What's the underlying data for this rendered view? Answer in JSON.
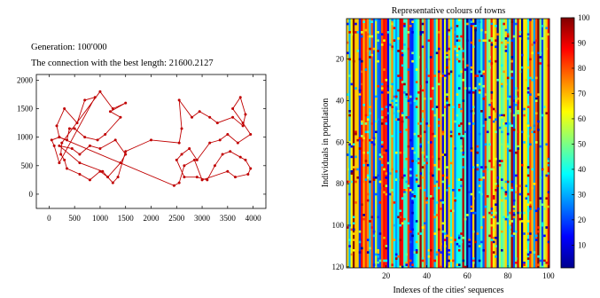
{
  "chart_data": [
    {
      "type": "line",
      "title_lines": [
        "Generation: 100'000",
        "The connection with the best length: 21600.2127"
      ],
      "xlabel": "",
      "ylabel": "",
      "xlim": [
        -250,
        4250
      ],
      "ylim": [
        -250,
        2100
      ],
      "xticks": [
        0,
        500,
        1000,
        1500,
        2000,
        2500,
        3000,
        3500,
        4000
      ],
      "yticks": [
        0,
        500,
        1000,
        1500,
        2000
      ],
      "grid": false,
      "marker_color": "#c00000",
      "x": [
        200,
        50,
        100,
        200,
        350,
        150,
        300,
        550,
        700,
        900,
        1000,
        1250,
        1500,
        1200,
        1400,
        1100,
        950,
        700,
        500,
        400,
        250,
        230,
        200,
        300,
        350,
        600,
        800,
        1000,
        1150,
        1400,
        1500,
        1300,
        1000,
        800,
        600,
        450,
        200,
        600,
        1050,
        1250,
        1350,
        1500,
        2000,
        2550,
        2600,
        2550,
        2800,
        2950,
        3150,
        3300,
        3600,
        3800,
        3850,
        3750,
        3600,
        3800,
        3950,
        3700,
        3500,
        3350,
        3150,
        2900,
        2750,
        2600,
        2500,
        2650,
        2900,
        3100,
        3250,
        3400,
        3550,
        3750,
        3850,
        3950,
        3900,
        3650,
        3500,
        3000,
        2850,
        2650,
        2550,
        2450
      ],
      "y": [
        1000,
        950,
        850,
        1000,
        950,
        1200,
        1500,
        1250,
        1650,
        1700,
        1800,
        1500,
        1600,
        1450,
        1350,
        1050,
        950,
        1000,
        1150,
        1150,
        900,
        700,
        550,
        600,
        450,
        350,
        250,
        400,
        300,
        550,
        700,
        950,
        800,
        850,
        700,
        800,
        850,
        550,
        400,
        200,
        300,
        750,
        950,
        900,
        1150,
        1650,
        1350,
        1450,
        1350,
        1250,
        1350,
        1200,
        1400,
        1700,
        1500,
        1250,
        1050,
        900,
        1050,
        950,
        900,
        600,
        800,
        700,
        600,
        300,
        300,
        250,
        500,
        700,
        750,
        650,
        600,
        450,
        350,
        300,
        400,
        250,
        600,
        500,
        200,
        150
      ],
      "rendered_tour": [
        0,
        1,
        2,
        22,
        9,
        8,
        7,
        6,
        5,
        3,
        4,
        19,
        18,
        17,
        16,
        15,
        14,
        13,
        12,
        11,
        10,
        20,
        21,
        23,
        24,
        25,
        26,
        27,
        28,
        29,
        30,
        31,
        32,
        33,
        34,
        35,
        36,
        37,
        38,
        39,
        40,
        41,
        42,
        43,
        44,
        45,
        46,
        47,
        48,
        49,
        50,
        51,
        52,
        53,
        54,
        55,
        56,
        57,
        58,
        59,
        60,
        61,
        62,
        63,
        64,
        65,
        66,
        67,
        68,
        69,
        70,
        71,
        72,
        73,
        74,
        75,
        76,
        77,
        78,
        79,
        80,
        81
      ]
    },
    {
      "type": "heatmap",
      "title": "Representative colours of towns",
      "xlabel": "Indexes of the cities' sequences",
      "ylabel": "Individuals in population",
      "xlim": [
        0.5,
        100.5
      ],
      "ylim": [
        0.5,
        120.5
      ],
      "y_reversed": true,
      "xticks": [
        20,
        40,
        60,
        80,
        100
      ],
      "yticks": [
        20,
        40,
        60,
        80,
        100,
        120
      ],
      "colorbar": {
        "min": 1,
        "max": 100,
        "ticks": [
          10,
          20,
          30,
          40,
          50,
          60,
          70,
          80,
          90,
          100
        ],
        "colormap": "jet"
      },
      "n_rows": 120,
      "n_cols": 100
    }
  ]
}
